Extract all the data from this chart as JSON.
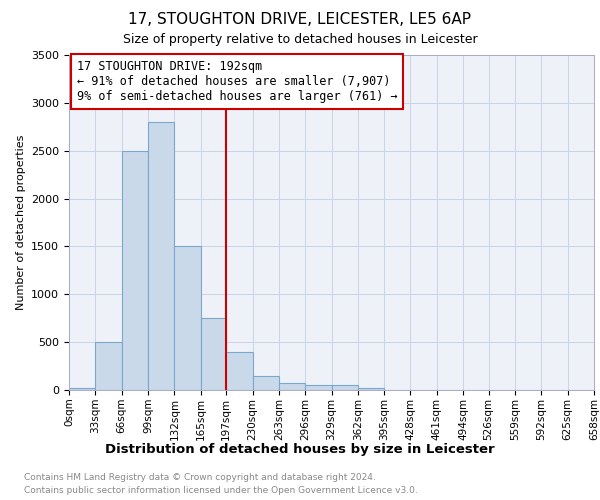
{
  "title": "17, STOUGHTON DRIVE, LEICESTER, LE5 6AP",
  "subtitle": "Size of property relative to detached houses in Leicester",
  "xlabel": "Distribution of detached houses by size in Leicester",
  "ylabel": "Number of detached properties",
  "annotation_line1": "17 STOUGHTON DRIVE: 192sqm",
  "annotation_line2": "← 91% of detached houses are smaller (7,907)",
  "annotation_line3": "9% of semi-detached houses are larger (761) →",
  "bin_edges": [
    0,
    33,
    66,
    99,
    132,
    165,
    197,
    230,
    263,
    296,
    329,
    362,
    395,
    428,
    461,
    494,
    526,
    559,
    592,
    625,
    658
  ],
  "bar_heights": [
    25,
    500,
    2500,
    2800,
    1500,
    750,
    400,
    150,
    75,
    50,
    50,
    25,
    5,
    0,
    0,
    0,
    0,
    0,
    0,
    0
  ],
  "bar_color": "#c9d9ea",
  "bar_edge_color": "#7aa8cc",
  "vline_color": "#cc0000",
  "vline_x": 197,
  "annotation_box_color": "#cc0000",
  "ylim": [
    0,
    3500
  ],
  "xlim": [
    0,
    658
  ],
  "footnote1": "Contains HM Land Registry data © Crown copyright and database right 2024.",
  "footnote2": "Contains public sector information licensed under the Open Government Licence v3.0.",
  "grid_color": "#c8d4e8",
  "background_color": "#eef2f8",
  "title_fontsize": 11,
  "subtitle_fontsize": 9,
  "ylabel_fontsize": 8,
  "xlabel_fontsize": 9.5,
  "annot_fontsize": 8.5
}
